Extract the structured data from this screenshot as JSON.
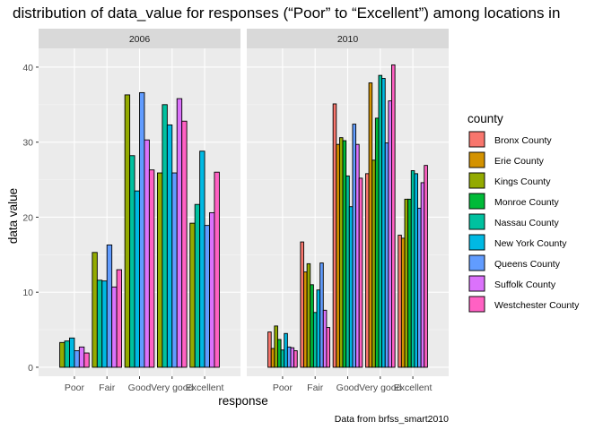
{
  "chart_data": {
    "type": "bar",
    "title": "distribution of data_value for responses (“Poor” to “Excellent”) among locations in",
    "xlabel": "response",
    "ylabel": "data value",
    "caption": "Data from brfss_smart2010",
    "ylim": [
      -1.2,
      42.5
    ],
    "yticks": [
      0,
      10,
      20,
      30,
      40
    ],
    "categories": [
      "Poor",
      "Fair",
      "Good",
      "Very good",
      "Excellent"
    ],
    "legend": {
      "title": "county",
      "position": "right",
      "entries": [
        "Bronx County",
        "Erie County",
        "Kings County",
        "Monroe County",
        "Nassau County",
        "New York County",
        "Queens County",
        "Suffolk County",
        "Westchester County"
      ]
    },
    "colors": {
      "Bronx County": "#F8766D",
      "Erie County": "#D39200",
      "Kings County": "#93AA00",
      "Monroe County": "#00BA38",
      "Nassau County": "#00C19F",
      "New York County": "#00B9E3",
      "Queens County": "#619CFF",
      "Suffolk County": "#DB72FB",
      "Westchester County": "#FF61C3"
    },
    "panels": [
      {
        "label": "2006",
        "series": [
          {
            "response": "Poor",
            "bars": [
              {
                "county": "Kings County",
                "value": 3.3
              },
              {
                "county": "Nassau County",
                "value": 3.5
              },
              {
                "county": "New York County",
                "value": 3.9
              },
              {
                "county": "Queens County",
                "value": 2.2
              },
              {
                "county": "Suffolk County",
                "value": 2.7
              },
              {
                "county": "Westchester County",
                "value": 1.9
              }
            ]
          },
          {
            "response": "Fair",
            "bars": [
              {
                "county": "Kings County",
                "value": 15.3
              },
              {
                "county": "Nassau County",
                "value": 11.6
              },
              {
                "county": "New York County",
                "value": 11.5
              },
              {
                "county": "Queens County",
                "value": 16.3
              },
              {
                "county": "Suffolk County",
                "value": 10.7
              },
              {
                "county": "Westchester County",
                "value": 13.0
              }
            ]
          },
          {
            "response": "Good",
            "bars": [
              {
                "county": "Kings County",
                "value": 36.3
              },
              {
                "county": "Nassau County",
                "value": 28.2
              },
              {
                "county": "New York County",
                "value": 23.5
              },
              {
                "county": "Queens County",
                "value": 36.6
              },
              {
                "county": "Suffolk County",
                "value": 30.3
              },
              {
                "county": "Westchester County",
                "value": 26.3
              }
            ]
          },
          {
            "response": "Very good",
            "bars": [
              {
                "county": "Kings County",
                "value": 25.9
              },
              {
                "county": "Nassau County",
                "value": 35.0
              },
              {
                "county": "New York County",
                "value": 32.3
              },
              {
                "county": "Queens County",
                "value": 25.9
              },
              {
                "county": "Suffolk County",
                "value": 35.8
              },
              {
                "county": "Westchester County",
                "value": 32.8
              }
            ]
          },
          {
            "response": "Excellent",
            "bars": [
              {
                "county": "Kings County",
                "value": 19.2
              },
              {
                "county": "Nassau County",
                "value": 21.7
              },
              {
                "county": "New York County",
                "value": 28.8
              },
              {
                "county": "Queens County",
                "value": 18.9
              },
              {
                "county": "Suffolk County",
                "value": 20.6
              },
              {
                "county": "Westchester County",
                "value": 26.0
              }
            ]
          }
        ]
      },
      {
        "label": "2010",
        "series": [
          {
            "response": "Poor",
            "bars": [
              {
                "county": "Bronx County",
                "value": 4.7
              },
              {
                "county": "Erie County",
                "value": 2.5
              },
              {
                "county": "Kings County",
                "value": 5.5
              },
              {
                "county": "Monroe County",
                "value": 3.7
              },
              {
                "county": "Nassau County",
                "value": 2.3
              },
              {
                "county": "New York County",
                "value": 4.5
              },
              {
                "county": "Queens County",
                "value": 2.7
              },
              {
                "county": "Suffolk County",
                "value": 2.6
              },
              {
                "county": "Westchester County",
                "value": 2.2
              }
            ]
          },
          {
            "response": "Fair",
            "bars": [
              {
                "county": "Bronx County",
                "value": 16.7
              },
              {
                "county": "Erie County",
                "value": 12.7
              },
              {
                "county": "Kings County",
                "value": 13.8
              },
              {
                "county": "Monroe County",
                "value": 11.0
              },
              {
                "county": "Nassau County",
                "value": 7.3
              },
              {
                "county": "New York County",
                "value": 10.3
              },
              {
                "county": "Queens County",
                "value": 13.9
              },
              {
                "county": "Suffolk County",
                "value": 7.6
              },
              {
                "county": "Westchester County",
                "value": 5.3
              }
            ]
          },
          {
            "response": "Good",
            "bars": [
              {
                "county": "Bronx County",
                "value": 35.1
              },
              {
                "county": "Erie County",
                "value": 29.7
              },
              {
                "county": "Kings County",
                "value": 30.6
              },
              {
                "county": "Monroe County",
                "value": 30.2
              },
              {
                "county": "Nassau County",
                "value": 25.5
              },
              {
                "county": "New York County",
                "value": 21.4
              },
              {
                "county": "Queens County",
                "value": 32.4
              },
              {
                "county": "Suffolk County",
                "value": 29.7
              },
              {
                "county": "Westchester County",
                "value": 25.2
              }
            ]
          },
          {
            "response": "Very good",
            "bars": [
              {
                "county": "Bronx County",
                "value": 25.8
              },
              {
                "county": "Erie County",
                "value": 37.9
              },
              {
                "county": "Kings County",
                "value": 27.6
              },
              {
                "county": "Monroe County",
                "value": 33.2
              },
              {
                "county": "Nassau County",
                "value": 38.9
              },
              {
                "county": "New York County",
                "value": 38.5
              },
              {
                "county": "Queens County",
                "value": 29.9
              },
              {
                "county": "Suffolk County",
                "value": 35.5
              },
              {
                "county": "Westchester County",
                "value": 40.3
              }
            ]
          },
          {
            "response": "Excellent",
            "bars": [
              {
                "county": "Bronx County",
                "value": 17.6
              },
              {
                "county": "Erie County",
                "value": 17.2
              },
              {
                "county": "Kings County",
                "value": 22.4
              },
              {
                "county": "Monroe County",
                "value": 22.4
              },
              {
                "county": "Nassau County",
                "value": 26.2
              },
              {
                "county": "New York County",
                "value": 25.8
              },
              {
                "county": "Queens County",
                "value": 21.2
              },
              {
                "county": "Suffolk County",
                "value": 24.6
              },
              {
                "county": "Westchester County",
                "value": 26.9
              }
            ]
          }
        ]
      }
    ]
  }
}
